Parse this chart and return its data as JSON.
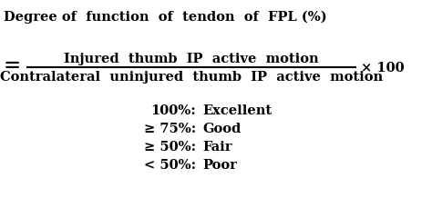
{
  "title_line": "Degree of  function  of  tendon  of  FPL (%)",
  "equals_sign": "=",
  "numerator": "Injured  thumb  IP  active  motion",
  "denominator": "Contralateral  uninjured  thumb  IP  active  motion",
  "times_100": "× 100",
  "criteria": [
    {
      "label": "100%:",
      "grade": "Excellent"
    },
    {
      "label": "≥ 75%:",
      "grade": "Good"
    },
    {
      "label": "≥ 50%:",
      "grade": "Fair"
    },
    {
      "label": "< 50%:",
      "grade": "Poor"
    }
  ],
  "bg_color": "#ffffff",
  "text_color": "#000000",
  "font_size_title": 10.5,
  "font_size_formula": 10.5,
  "font_size_criteria": 10.5
}
